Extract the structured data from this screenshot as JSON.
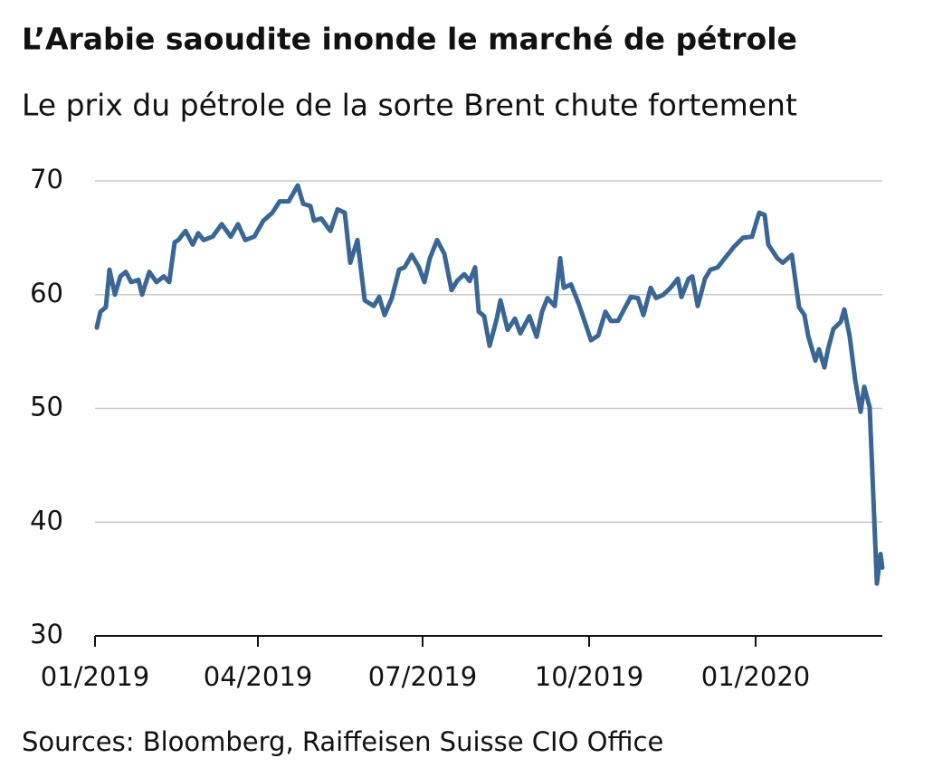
{
  "chart_data": {
    "type": "line",
    "title": "L’Arabie saoudite inonde le marché de pétrole",
    "subtitle": "Le prix du pétrole de la sorte Brent chute fortement",
    "source": "Sources: Bloomberg, Raiffeisen Suisse CIO Office",
    "x": [
      "2019-01-02",
      "2019-01-04",
      "2019-01-07",
      "2019-01-09",
      "2019-01-12",
      "2019-01-15",
      "2019-01-18",
      "2019-01-21",
      "2019-01-25",
      "2019-01-27",
      "2019-01-31",
      "2019-02-04",
      "2019-02-08",
      "2019-02-11",
      "2019-02-14",
      "2019-02-16",
      "2019-02-20",
      "2019-02-24",
      "2019-02-27",
      "2019-03-02",
      "2019-03-07",
      "2019-03-12",
      "2019-03-17",
      "2019-03-21",
      "2019-03-25",
      "2019-03-30",
      "2019-04-04",
      "2019-04-09",
      "2019-04-13",
      "2019-04-18",
      "2019-04-23",
      "2019-04-26",
      "2019-04-30",
      "2019-05-02",
      "2019-05-06",
      "2019-05-11",
      "2019-05-15",
      "2019-05-19",
      "2019-05-22",
      "2019-05-26",
      "2019-05-30",
      "2019-06-04",
      "2019-06-07",
      "2019-06-10",
      "2019-06-14",
      "2019-06-18",
      "2019-06-21",
      "2019-06-25",
      "2019-06-29",
      "2019-07-02",
      "2019-07-05",
      "2019-07-09",
      "2019-07-13",
      "2019-07-17",
      "2019-07-20",
      "2019-07-24",
      "2019-07-27",
      "2019-07-30",
      "2019-08-01",
      "2019-08-04",
      "2019-08-07",
      "2019-08-11",
      "2019-08-13",
      "2019-08-17",
      "2019-08-21",
      "2019-08-24",
      "2019-08-29",
      "2019-09-02",
      "2019-09-05",
      "2019-09-08",
      "2019-09-12",
      "2019-09-15",
      "2019-09-17",
      "2019-09-21",
      "2019-09-25",
      "2019-09-28",
      "2019-10-02",
      "2019-10-06",
      "2019-10-10",
      "2019-10-13",
      "2019-10-17",
      "2019-10-21",
      "2019-10-24",
      "2019-10-28",
      "2019-10-31",
      "2019-11-04",
      "2019-11-07",
      "2019-11-11",
      "2019-11-15",
      "2019-11-19",
      "2019-11-21",
      "2019-11-25",
      "2019-11-27",
      "2019-11-30",
      "2019-12-04",
      "2019-12-07",
      "2019-12-11",
      "2019-12-15",
      "2019-12-20",
      "2019-12-25",
      "2019-12-30",
      "2020-01-03",
      "2020-01-06",
      "2020-01-08",
      "2020-01-13",
      "2020-01-16",
      "2020-01-21",
      "2020-01-25",
      "2020-01-28",
      "2020-01-30",
      "2020-02-03",
      "2020-02-05",
      "2020-02-08",
      "2020-02-10",
      "2020-02-13",
      "2020-02-17",
      "2020-02-19",
      "2020-02-22",
      "2020-02-25",
      "2020-02-28",
      "2020-03-01",
      "2020-03-04",
      "2020-03-08",
      "2020-03-10",
      "2020-03-11"
    ],
    "series": [
      {
        "name": "Brent",
        "color": "#3a6696",
        "values": [
          57.1,
          58.5,
          58.9,
          62.2,
          60.0,
          61.6,
          62.0,
          61.1,
          61.3,
          60.0,
          62.0,
          61.1,
          61.6,
          61.1,
          64.6,
          64.8,
          65.6,
          64.4,
          65.4,
          64.8,
          65.1,
          66.2,
          65.1,
          66.2,
          64.8,
          65.1,
          66.5,
          67.2,
          68.2,
          68.2,
          69.6,
          68.0,
          67.8,
          66.5,
          66.7,
          65.6,
          67.5,
          67.2,
          62.8,
          64.8,
          59.5,
          59.0,
          59.8,
          58.2,
          59.7,
          62.2,
          62.4,
          63.5,
          62.4,
          61.1,
          63.2,
          64.8,
          63.6,
          60.4,
          61.2,
          61.8,
          61.2,
          62.4,
          58.5,
          58.1,
          55.5,
          57.9,
          59.5,
          56.9,
          57.9,
          56.6,
          58.1,
          56.3,
          58.5,
          59.7,
          59.0,
          63.2,
          60.6,
          60.9,
          59.3,
          57.9,
          56.0,
          56.4,
          58.5,
          57.7,
          57.7,
          58.9,
          59.8,
          59.7,
          58.2,
          60.6,
          59.7,
          60.0,
          60.6,
          61.4,
          59.8,
          61.4,
          61.6,
          59.0,
          61.4,
          62.2,
          62.4,
          63.2,
          64.2,
          65.0,
          65.1,
          67.2,
          67.0,
          64.4,
          63.2,
          62.8,
          63.5,
          58.9,
          58.2,
          56.4,
          54.2,
          55.2,
          53.6,
          55.2,
          57.0,
          57.6,
          58.7,
          56.3,
          52.5,
          49.7,
          51.9,
          50.1,
          34.6,
          37.2,
          36.0
        ]
      }
    ],
    "xlim": [
      "2019-01-01",
      "2020-03-11"
    ],
    "xticks": [
      {
        "value": "2019-01-01",
        "label": "01/2019"
      },
      {
        "value": "2019-04-01",
        "label": "04/2019"
      },
      {
        "value": "2019-07-01",
        "label": "07/2019"
      },
      {
        "value": "2019-10-01",
        "label": "10/2019"
      },
      {
        "value": "2020-01-01",
        "label": "01/2020"
      }
    ],
    "ylim": [
      30,
      70
    ],
    "yticks": [
      30,
      40,
      50,
      60,
      70
    ],
    "grid": true
  }
}
